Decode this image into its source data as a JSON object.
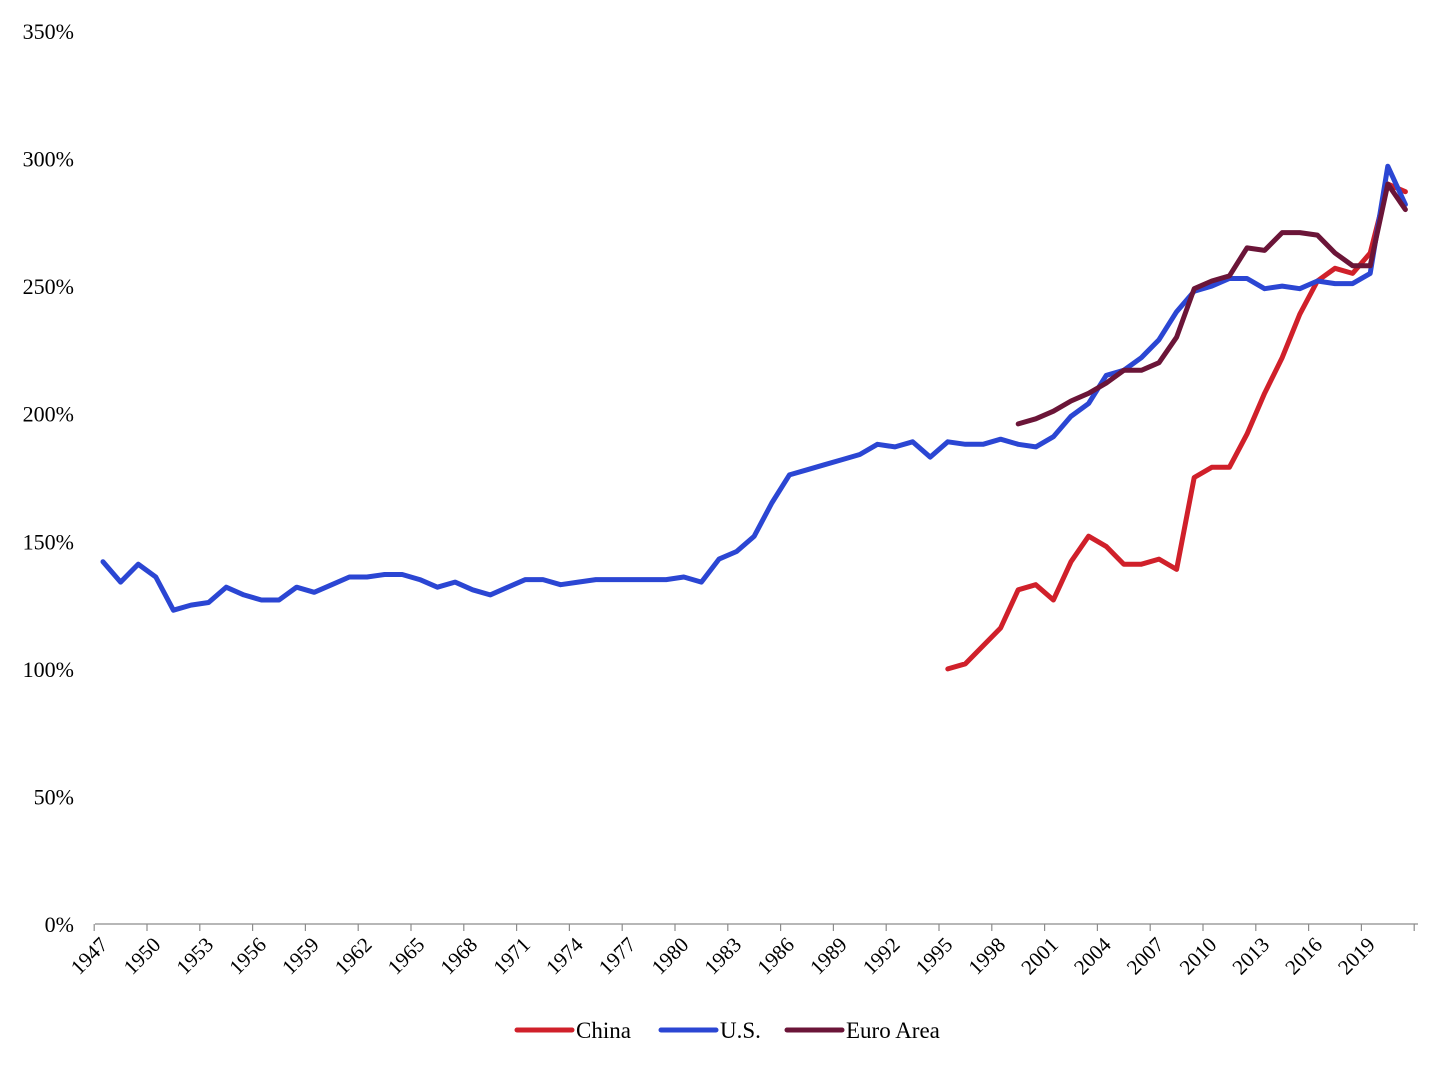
{
  "chart_data": {
    "type": "line",
    "title": "",
    "xlabel": "",
    "ylabel": "",
    "ylim": [
      0,
      3.5
    ],
    "xlim": [
      1947,
      2021
    ],
    "y_ticks": [
      "0%",
      "50%",
      "100%",
      "150%",
      "200%",
      "250%",
      "300%",
      "350%"
    ],
    "x_ticks": [
      "1947",
      "1950",
      "1953",
      "1956",
      "1959",
      "1962",
      "1965",
      "1968",
      "1971",
      "1974",
      "1977",
      "1980",
      "1983",
      "1986",
      "1989",
      "1992",
      "1995",
      "1998",
      "2001",
      "2004",
      "2007",
      "2010",
      "2013",
      "2016",
      "2019"
    ],
    "grid": false,
    "legend_position": "bottom",
    "series": [
      {
        "name": "China",
        "color": "#D0202A",
        "x": [
          1995,
          1996,
          1997,
          1998,
          1999,
          2000,
          2001,
          2002,
          2003,
          2004,
          2005,
          2006,
          2007,
          2008,
          2009,
          2010,
          2011,
          2012,
          2013,
          2014,
          2015,
          2016,
          2017,
          2018,
          2019,
          2020,
          2021
        ],
        "values": [
          1.0,
          1.02,
          1.09,
          1.16,
          1.31,
          1.33,
          1.27,
          1.42,
          1.52,
          1.48,
          1.41,
          1.41,
          1.43,
          1.39,
          1.75,
          1.79,
          1.79,
          1.92,
          2.08,
          2.22,
          2.39,
          2.52,
          2.57,
          2.55,
          2.63,
          2.9,
          2.87
        ]
      },
      {
        "name": "U.S.",
        "color": "#2B46D3",
        "x": [
          1947,
          1948,
          1949,
          1950,
          1951,
          1952,
          1953,
          1954,
          1955,
          1956,
          1957,
          1958,
          1959,
          1960,
          1961,
          1962,
          1963,
          1964,
          1965,
          1966,
          1967,
          1968,
          1969,
          1970,
          1971,
          1972,
          1973,
          1974,
          1975,
          1976,
          1977,
          1978,
          1979,
          1980,
          1981,
          1982,
          1983,
          1984,
          1985,
          1986,
          1987,
          1988,
          1989,
          1990,
          1991,
          1992,
          1993,
          1994,
          1995,
          1996,
          1997,
          1998,
          1999,
          2000,
          2001,
          2002,
          2003,
          2004,
          2005,
          2006,
          2007,
          2008,
          2009,
          2010,
          2011,
          2012,
          2013,
          2014,
          2015,
          2016,
          2017,
          2018,
          2019,
          2020,
          2021
        ],
        "values": [
          1.42,
          1.34,
          1.41,
          1.36,
          1.23,
          1.25,
          1.26,
          1.32,
          1.29,
          1.27,
          1.27,
          1.32,
          1.3,
          1.33,
          1.36,
          1.36,
          1.37,
          1.37,
          1.35,
          1.32,
          1.34,
          1.31,
          1.29,
          1.32,
          1.35,
          1.35,
          1.33,
          1.34,
          1.35,
          1.35,
          1.35,
          1.35,
          1.35,
          1.36,
          1.34,
          1.43,
          1.46,
          1.52,
          1.65,
          1.76,
          1.78,
          1.8,
          1.82,
          1.84,
          1.88,
          1.87,
          1.89,
          1.83,
          1.89,
          1.88,
          1.88,
          1.9,
          1.88,
          1.87,
          1.91,
          1.99,
          2.04,
          2.15,
          2.17,
          2.22,
          2.29,
          2.4,
          2.48,
          2.5,
          2.53,
          2.53,
          2.49,
          2.5,
          2.49,
          2.52,
          2.51,
          2.51,
          2.55,
          2.97,
          2.82
        ]
      },
      {
        "name": "Euro Area",
        "color": "#6B1538",
        "x": [
          1999,
          2000,
          2001,
          2002,
          2003,
          2004,
          2005,
          2006,
          2007,
          2008,
          2009,
          2010,
          2011,
          2012,
          2013,
          2014,
          2015,
          2016,
          2017,
          2018,
          2019,
          2020,
          2021
        ],
        "values": [
          1.96,
          1.98,
          2.01,
          2.05,
          2.08,
          2.12,
          2.17,
          2.17,
          2.2,
          2.3,
          2.49,
          2.52,
          2.54,
          2.65,
          2.64,
          2.71,
          2.71,
          2.7,
          2.63,
          2.58,
          2.58,
          2.9,
          2.8
        ]
      }
    ]
  }
}
